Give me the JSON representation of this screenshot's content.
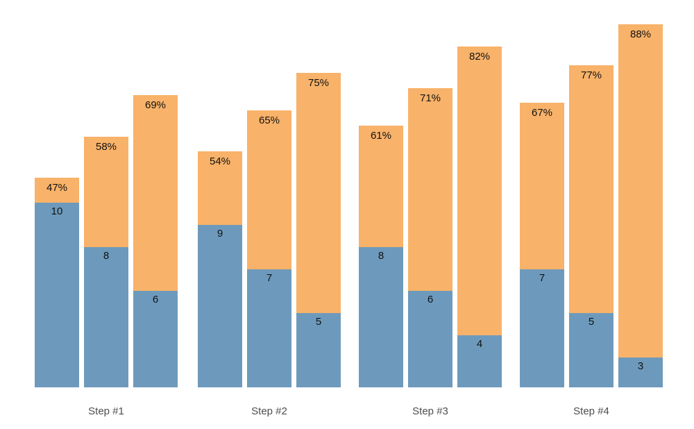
{
  "chart_data": {
    "type": "bar",
    "stacked": true,
    "title": "",
    "xlabel": "",
    "ylabel": "",
    "legend": "none",
    "gridlines": false,
    "y_axis_visible": false,
    "background_color": "#ffffff",
    "categories": [
      "Step #1",
      "Step #2",
      "Step #3",
      "Step #4"
    ],
    "bars_per_category": 3,
    "series_colors": {
      "bottom_segment": "#6d9abc",
      "top_segment": "#f8b269"
    },
    "label_color": "#111111",
    "tick_label_color": "#4d4d4d",
    "groups": [
      {
        "label": "Step #1",
        "bars": [
          {
            "percent": 47,
            "percent_label": "47%",
            "count": 10,
            "count_label": "10"
          },
          {
            "percent": 58,
            "percent_label": "58%",
            "count": 8,
            "count_label": "8"
          },
          {
            "percent": 69,
            "percent_label": "69%",
            "count": 6,
            "count_label": "6"
          }
        ]
      },
      {
        "label": "Step #2",
        "bars": [
          {
            "percent": 54,
            "percent_label": "54%",
            "count": 9,
            "count_label": "9"
          },
          {
            "percent": 65,
            "percent_label": "65%",
            "count": 7,
            "count_label": "7"
          },
          {
            "percent": 75,
            "percent_label": "75%",
            "count": 5,
            "count_label": "5"
          }
        ]
      },
      {
        "label": "Step #3",
        "bars": [
          {
            "percent": 61,
            "percent_label": "61%",
            "count": 8,
            "count_label": "8"
          },
          {
            "percent": 71,
            "percent_label": "71%",
            "count": 6,
            "count_label": "6"
          },
          {
            "percent": 82,
            "percent_label": "82%",
            "count": 4,
            "count_label": "4"
          }
        ]
      },
      {
        "label": "Step #4",
        "bars": [
          {
            "percent": 67,
            "percent_label": "67%",
            "count": 7,
            "count_label": "7"
          },
          {
            "percent": 77,
            "percent_label": "77%",
            "count": 5,
            "count_label": "5"
          },
          {
            "percent": 88,
            "percent_label": "88%",
            "count": 3,
            "count_label": "3"
          }
        ]
      }
    ]
  }
}
